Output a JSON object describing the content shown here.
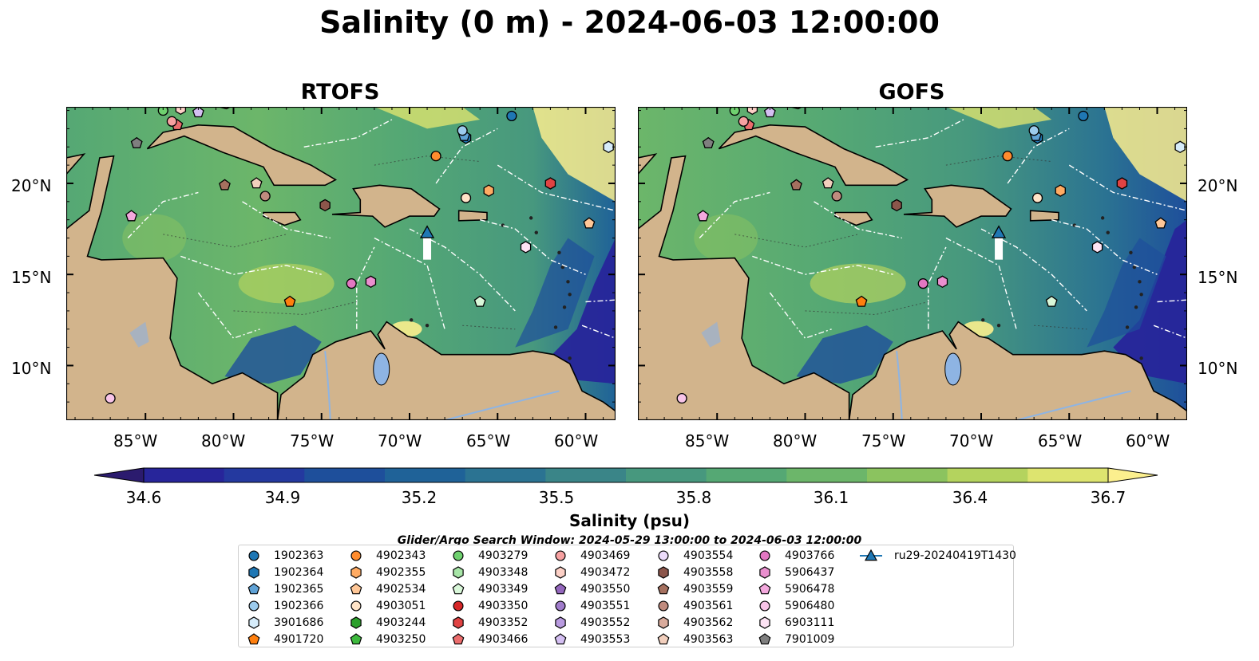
{
  "title": "Salinity (0 m) - 2024-06-03 12:00:00",
  "panels": [
    {
      "title": "RTOFS"
    },
    {
      "title": "GOFS"
    }
  ],
  "lat_ticks": [
    "20°N",
    "15°N",
    "10°N"
  ],
  "lon_ticks": [
    "85°W",
    "80°W",
    "75°W",
    "70°W",
    "65°W",
    "60°W"
  ],
  "colorbar": {
    "label": "Salinity (psu)",
    "ticks": [
      "34.6",
      "34.9",
      "35.2",
      "35.5",
      "35.8",
      "36.1",
      "36.4",
      "36.7"
    ],
    "colors": [
      "#2b1b6e",
      "#27259a",
      "#24399f",
      "#1e4f9b",
      "#1f6298",
      "#2b7392",
      "#3a8588",
      "#47987e",
      "#55a874",
      "#6cb66a",
      "#8bc35f",
      "#b4d35e",
      "#dde46f",
      "#fbef8e"
    ],
    "min": 34.6,
    "max": 36.7
  },
  "search_window": "Glider/Argo Search Window: 2024-05-29 13:00:00 to 2024-06-03 12:00:00",
  "legend": [
    {
      "label": "1902363",
      "marker": "circle",
      "color": "#1f77b4"
    },
    {
      "label": "1902364",
      "marker": "hexagon",
      "color": "#1f77b4"
    },
    {
      "label": "1902365",
      "marker": "pentagon",
      "color": "#5fa2d6"
    },
    {
      "label": "1902366",
      "marker": "circle",
      "color": "#9ccbed"
    },
    {
      "label": "3901686",
      "marker": "hexagon",
      "color": "#d6ecfa"
    },
    {
      "label": "4901720",
      "marker": "pentagon",
      "color": "#ff7f0e"
    },
    {
      "label": "4902343",
      "marker": "circle",
      "color": "#ff8c2e"
    },
    {
      "label": "4902355",
      "marker": "hexagon",
      "color": "#ffab63"
    },
    {
      "label": "4902534",
      "marker": "pentagon",
      "color": "#ffc797"
    },
    {
      "label": "4903051",
      "marker": "circle",
      "color": "#ffe4c8"
    },
    {
      "label": "4903244",
      "marker": "hexagon",
      "color": "#2ca02c"
    },
    {
      "label": "4903250",
      "marker": "pentagon",
      "color": "#3db93d"
    },
    {
      "label": "4903279",
      "marker": "circle",
      "color": "#6fd16f"
    },
    {
      "label": "4903348",
      "marker": "hexagon",
      "color": "#a8e6a8"
    },
    {
      "label": "4903349",
      "marker": "pentagon",
      "color": "#d9f7d9"
    },
    {
      "label": "4903350",
      "marker": "circle",
      "color": "#d62728"
    },
    {
      "label": "4903352",
      "marker": "hexagon",
      "color": "#e04343"
    },
    {
      "label": "4903466",
      "marker": "pentagon",
      "color": "#ec6d6d"
    },
    {
      "label": "4903469",
      "marker": "circle",
      "color": "#f7a1a1"
    },
    {
      "label": "4903472",
      "marker": "hexagon",
      "color": "#fcd0c6"
    },
    {
      "label": "4903550",
      "marker": "pentagon",
      "color": "#9467bd"
    },
    {
      "label": "4903551",
      "marker": "circle",
      "color": "#a07ccb"
    },
    {
      "label": "4903552",
      "marker": "hexagon",
      "color": "#b99be0"
    },
    {
      "label": "4903553",
      "marker": "pentagon",
      "color": "#d4bff2"
    },
    {
      "label": "4903554",
      "marker": "circle",
      "color": "#ecdcfb"
    },
    {
      "label": "4903558",
      "marker": "hexagon",
      "color": "#8c564b"
    },
    {
      "label": "4903559",
      "marker": "pentagon",
      "color": "#a5705f"
    },
    {
      "label": "4903561",
      "marker": "circle",
      "color": "#c08b7e"
    },
    {
      "label": "4903562",
      "marker": "hexagon",
      "color": "#d9ab9c"
    },
    {
      "label": "4903563",
      "marker": "pentagon",
      "color": "#f2cfbd"
    },
    {
      "label": "4903766",
      "marker": "circle",
      "color": "#e377c2"
    },
    {
      "label": "5906437",
      "marker": "hexagon",
      "color": "#ea8fcf"
    },
    {
      "label": "5906478",
      "marker": "pentagon",
      "color": "#f3a8dd"
    },
    {
      "label": "5906480",
      "marker": "circle",
      "color": "#f8c4e8"
    },
    {
      "label": "6903111",
      "marker": "hexagon",
      "color": "#fde3f4"
    },
    {
      "label": "7901009",
      "marker": "pentagon",
      "color": "#7f7f7f"
    },
    {
      "label": "ru29-20240419T1430",
      "marker": "triangle-line",
      "color": "#1f77b4"
    }
  ],
  "floats": [
    {
      "id": "1902363",
      "lon": -64.2,
      "lat": 23.7
    },
    {
      "id": "1902364",
      "lon": -66.8,
      "lat": 22.5
    },
    {
      "id": "1902365",
      "lon": -66.9,
      "lat": 22.6
    },
    {
      "id": "1902366",
      "lon": -67.0,
      "lat": 22.9
    },
    {
      "id": "3901686",
      "lon": -58.7,
      "lat": 22.0
    },
    {
      "id": "4901720",
      "lon": -76.8,
      "lat": 13.5
    },
    {
      "id": "4902343",
      "lon": -68.5,
      "lat": 21.5
    },
    {
      "id": "4902355",
      "lon": -65.5,
      "lat": 19.6
    },
    {
      "id": "4902534",
      "lon": -59.8,
      "lat": 17.8
    },
    {
      "id": "4903051",
      "lon": -66.8,
      "lat": 19.2
    },
    {
      "id": "4903279",
      "lon": -84.0,
      "lat": 24.0
    },
    {
      "id": "4903349",
      "lon": -66.0,
      "lat": 13.5
    },
    {
      "id": "4903352",
      "lon": -62.0,
      "lat": 20.0
    },
    {
      "id": "4903466",
      "lon": -83.2,
      "lat": 23.2
    },
    {
      "id": "4903469",
      "lon": -83.5,
      "lat": 23.4
    },
    {
      "id": "4903472",
      "lon": -83.0,
      "lat": 24.1
    },
    {
      "id": "4903553",
      "lon": -82.0,
      "lat": 23.9
    },
    {
      "id": "4903558",
      "lon": -74.8,
      "lat": 18.8
    },
    {
      "id": "4903559",
      "lon": -80.5,
      "lat": 19.9
    },
    {
      "id": "4903561",
      "lon": -78.2,
      "lat": 19.3
    },
    {
      "id": "4903563",
      "lon": -78.7,
      "lat": 20.0
    },
    {
      "id": "4903766",
      "lon": -73.3,
      "lat": 14.5
    },
    {
      "id": "5906437",
      "lon": -72.2,
      "lat": 14.6
    },
    {
      "id": "5906478",
      "lon": -85.8,
      "lat": 18.2
    },
    {
      "id": "5906480",
      "lon": -87.0,
      "lat": 8.2
    },
    {
      "id": "6903111",
      "lon": -63.4,
      "lat": 16.5
    },
    {
      "id": "7901009",
      "lon": -85.5,
      "lat": 22.2
    }
  ],
  "glider": {
    "id": "ru29-20240419T1430",
    "lon": -69.0,
    "lat": 17.3
  }
}
